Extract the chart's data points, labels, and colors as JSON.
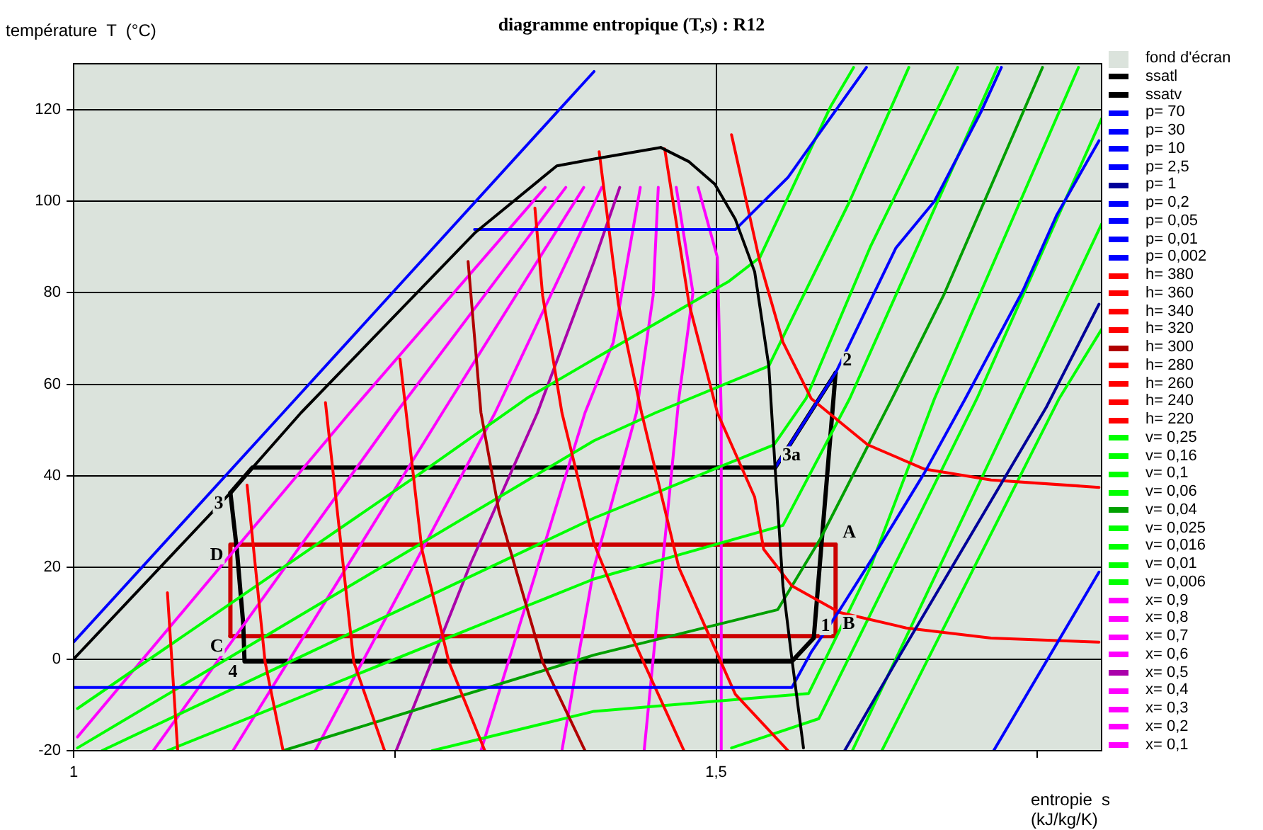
{
  "chart_data": {
    "type": "line",
    "title": "diagramme entropique (T,s) : R12",
    "xlabel": "entropie  s\n(kJ/kg/K)",
    "ylabel": "température  T  (°C)",
    "xlim": [
      1,
      1.8
    ],
    "xticks": [
      1,
      {
        "value": 1.25,
        "label": null
      },
      {
        "value": 1.5,
        "label": "1,5"
      },
      {
        "value": 1.75,
        "label": null
      }
    ],
    "ylim": [
      -20,
      130
    ],
    "yticks": [
      -20,
      0,
      20,
      40,
      60,
      80,
      100,
      120
    ],
    "grid": true,
    "legend": "right",
    "marker": "none",
    "line_style": "solid",
    "bands": [
      {
        "axis": "x",
        "from": 1,
        "to": 1.8,
        "label": "fond d'écran",
        "color": "#dbe3dc"
      }
    ],
    "annotations": [
      {
        "text": "2",
        "x": 1.593,
        "y": 62.5
      },
      {
        "text": "3a",
        "x": 1.546,
        "y": 41.8
      },
      {
        "text": "1",
        "x": 1.576,
        "y": 4.6
      },
      {
        "text": "4",
        "x": 1.133,
        "y": -0.5
      },
      {
        "text": "3",
        "x": 1.122,
        "y": 36.3
      },
      {
        "text": "A",
        "x": 1.593,
        "y": 25
      },
      {
        "text": "B",
        "x": 1.593,
        "y": 5
      },
      {
        "text": "C",
        "x": 1.122,
        "y": 5
      },
      {
        "text": "D",
        "x": 1.122,
        "y": 25
      }
    ],
    "series": [
      {
        "name": "ssatl",
        "color": "#000000",
        "x": [
          1.0,
          1.122,
          1.177,
          1.312,
          1.376,
          1.405,
          1.457
        ],
        "values": [
          0,
          36.3,
          53.8,
          93,
          107.7,
          109.2,
          111.7
        ]
      },
      {
        "name": "ssatv",
        "color": "#000000",
        "x": [
          1.457,
          1.479,
          1.499,
          1.515,
          1.53,
          1.541,
          1.546,
          1.552,
          1.559,
          1.568
        ],
        "values": [
          111.7,
          108.6,
          103.7,
          96,
          84.6,
          64,
          41.5,
          16,
          0,
          -19.4
        ]
      },
      {
        "name": "p= 70",
        "color": "#0000ff",
        "x": [
          1.0,
          1.163,
          1.405
        ],
        "values": [
          3.7,
          53.8,
          128.3
        ]
      },
      {
        "name": "p= 30",
        "color": "#0000ff",
        "x": [
          1.312,
          1.515,
          1.556,
          1.574,
          1.617
        ],
        "values": [
          93.8,
          93.8,
          105.2,
          112.3,
          129.2
        ]
      },
      {
        "name": "p= 10",
        "color": "#0000ff",
        "x": [
          1.546,
          1.593,
          1.64,
          1.67,
          1.706,
          1.722
        ],
        "values": [
          41.8,
          62.5,
          89.8,
          100,
          119.4,
          129.2
        ]
      },
      {
        "name": "p= 2,5",
        "color": "#0000ff",
        "x": [
          1.0,
          1.559,
          1.574,
          1.595,
          1.622,
          1.662,
          1.694,
          1.739,
          1.765,
          1.798
        ],
        "values": [
          -6.2,
          -6.2,
          1.5,
          10.2,
          22.2,
          40.6,
          56.9,
          80.6,
          96.9,
          113.2
        ]
      },
      {
        "name": "p= 1",
        "color": "#000099",
        "x": [
          1.6,
          1.64,
          1.757,
          1.798
        ],
        "values": [
          -20,
          -0.6,
          55,
          77.5
        ]
      },
      {
        "name": "p= 0,2",
        "color": "#0000ff",
        "x": [
          1.716,
          1.798
        ],
        "values": [
          -20,
          19
        ]
      },
      {
        "name": "p= 0,05",
        "color": "#0000ff"
      },
      {
        "name": "p= 0,01",
        "color": "#0000ff"
      },
      {
        "name": "p= 0,002",
        "color": "#0000ff"
      },
      {
        "name": "h= 380",
        "color": "#ff0000",
        "x": [
          1.512,
          1.534,
          1.552,
          1.574,
          1.618,
          1.662,
          1.714,
          1.798
        ],
        "values": [
          114.5,
          86.8,
          69.2,
          56.9,
          46.8,
          41.5,
          39.1,
          37.5
        ]
      },
      {
        "name": "h= 360",
        "color": "#ff0000",
        "x": [
          1.46,
          1.479,
          1.501,
          1.53,
          1.537,
          1.559,
          1.596,
          1.648,
          1.714,
          1.798
        ],
        "values": [
          111.4,
          77.5,
          53.8,
          35.4,
          24,
          16,
          10.2,
          6.8,
          4.6,
          3.7
        ]
      },
      {
        "name": "h= 340",
        "color": "#ff0000",
        "x": [
          1.409,
          1.424,
          1.442,
          1.471,
          1.515,
          1.556
        ],
        "values": [
          110.8,
          77.5,
          53.8,
          20,
          -7.7,
          -20
        ]
      },
      {
        "name": "h= 320",
        "color": "#ff0000",
        "x": [
          1.359,
          1.365,
          1.38,
          1.405,
          1.435,
          1.475
        ],
        "values": [
          98.5,
          79.4,
          53.8,
          25.2,
          4.6,
          -20
        ]
      },
      {
        "name": "h= 300",
        "color": "#b00000",
        "x": [
          1.307,
          1.317,
          1.331,
          1.365,
          1.398
        ],
        "values": [
          86.8,
          53.8,
          32.3,
          -0.6,
          -20
        ]
      },
      {
        "name": "h= 280",
        "color": "#ff0000",
        "x": [
          1.254,
          1.271,
          1.292,
          1.32
        ],
        "values": [
          65.5,
          24,
          -0.6,
          -20
        ]
      },
      {
        "name": "h= 260",
        "color": "#ff0000",
        "x": [
          1.196,
          1.218,
          1.242
        ],
        "values": [
          56,
          -0.6,
          -20
        ]
      },
      {
        "name": "h= 240",
        "color": "#ff0000",
        "x": [
          1.135,
          1.149,
          1.163
        ],
        "values": [
          38,
          -0.6,
          -20
        ]
      },
      {
        "name": "h= 220",
        "color": "#ff0000",
        "x": [
          1.073,
          1.081
        ],
        "values": [
          14.5,
          -20
        ]
      },
      {
        "name": "v= 0,25",
        "color": "#00ff00",
        "x": [
          1.629,
          1.767,
          1.8
        ],
        "values": [
          -20,
          56.9,
          72
        ]
      },
      {
        "name": "v= 0,16",
        "color": "#00ff00",
        "x": [
          1.606,
          1.736,
          1.8
        ],
        "values": [
          -20,
          56.9,
          95
        ]
      },
      {
        "name": "v= 0,1",
        "color": "#00ff00",
        "x": [
          1.512,
          1.58,
          1.703,
          1.8
        ],
        "values": [
          -19.4,
          -13,
          56.9,
          118
        ]
      },
      {
        "name": "v= 0,06",
        "color": "#00ff00",
        "x": [
          1.279,
          1.405,
          1.572,
          1.62,
          1.67,
          1.782
        ],
        "values": [
          -20,
          -11.4,
          -7.5,
          20,
          56.9,
          129.2
        ]
      },
      {
        "name": "v= 0,04",
        "color": "#00a000",
        "x": [
          1.163,
          1.405,
          1.548,
          1.581,
          1.637,
          1.677,
          1.754
        ],
        "values": [
          -20,
          0.9,
          10.8,
          26.2,
          56.9,
          79.4,
          129.2
        ]
      },
      {
        "name": "v= 0,025",
        "color": "#00ff00",
        "x": [
          1.073,
          1.405,
          1.552,
          1.604,
          1.719
        ],
        "values": [
          -20,
          17.5,
          29.2,
          56.9,
          129.2
        ]
      },
      {
        "name": "v= 0,016",
        "color": "#00ff00",
        "x": [
          1.022,
          1.405,
          1.545,
          1.57,
          1.62,
          1.688
        ],
        "values": [
          -20,
          30.8,
          46.8,
          56.9,
          90,
          129.2
        ]
      },
      {
        "name": "v= 0,01",
        "color": "#00ff00",
        "x": [
          1.003,
          1.405,
          1.453,
          1.541,
          1.604,
          1.65
        ],
        "values": [
          -19.4,
          47.7,
          53.8,
          64,
          100,
          129.2
        ]
      },
      {
        "name": "v= 0,006",
        "color": "#00ff00",
        "x": [
          1.003,
          1.27,
          1.353,
          1.405,
          1.51,
          1.534,
          1.589,
          1.607
        ],
        "values": [
          -10.8,
          40.6,
          57,
          65.5,
          82.5,
          87.7,
          120.6,
          129.2
        ]
      },
      {
        "name": "x= 0,9",
        "color": "#ff00ff",
        "x": [
          1.486,
          1.501,
          1.504,
          1.504
        ],
        "values": [
          103,
          87.7,
          53.8,
          -20
        ]
      },
      {
        "name": "x= 0,8",
        "color": "#ff00ff",
        "x": [
          1.469,
          1.482,
          1.471,
          1.444
        ],
        "values": [
          103,
          80,
          56.9,
          -20
        ]
      },
      {
        "name": "x= 0,7",
        "color": "#ff00ff",
        "x": [
          1.455,
          1.451,
          1.438,
          1.405,
          1.38
        ],
        "values": [
          103,
          79.4,
          53.8,
          20,
          -20
        ]
      },
      {
        "name": "x= 0,6",
        "color": "#ff00ff",
        "x": [
          1.441,
          1.42,
          1.398,
          1.317
        ],
        "values": [
          103,
          69.2,
          53.8,
          -20
        ]
      },
      {
        "name": "x= 0,5",
        "color": "#aa00aa",
        "x": [
          1.425,
          1.405,
          1.361,
          1.309,
          1.251
        ],
        "values": [
          103,
          86.8,
          53.8,
          20.9,
          -20
        ]
      },
      {
        "name": "x= 0,4",
        "color": "#ff00ff",
        "x": [
          1.411,
          1.328,
          1.188
        ],
        "values": [
          103,
          53.8,
          -20
        ]
      },
      {
        "name": "x= 0,3",
        "color": "#ff00ff",
        "x": [
          1.397,
          1.287,
          1.124
        ],
        "values": [
          103,
          53.8,
          -20
        ]
      },
      {
        "name": "x= 0,2",
        "color": "#ff00ff",
        "x": [
          1.383,
          1.251,
          1.062
        ],
        "values": [
          103,
          53.8,
          -20
        ]
      },
      {
        "name": "x= 0,1",
        "color": "#ff00ff",
        "x": [
          1.367,
          1.215,
          1.003
        ],
        "values": [
          103,
          53.8,
          -17
        ]
      },
      {
        "color": "#000000",
        "x": [
          1.122,
          1.127,
          1.132,
          1.133,
          1.559,
          1.576,
          1.593
        ],
        "values": [
          36.3,
          24,
          7.7,
          -0.5,
          -0.5,
          4.6,
          62.5
        ]
      },
      {
        "color": "#000000",
        "x": [
          1.122,
          1.139,
          1.546,
          1.593
        ],
        "values": [
          36.3,
          41.8,
          41.8,
          62.5
        ]
      },
      {
        "color": "#cc0000",
        "x": [
          1.122,
          1.122,
          1.593
        ],
        "values": [
          5,
          25,
          25
        ]
      },
      {
        "color": "#cc0000",
        "x": [
          1.122,
          1.593,
          1.593
        ],
        "values": [
          5,
          5,
          25
        ]
      }
    ]
  }
}
